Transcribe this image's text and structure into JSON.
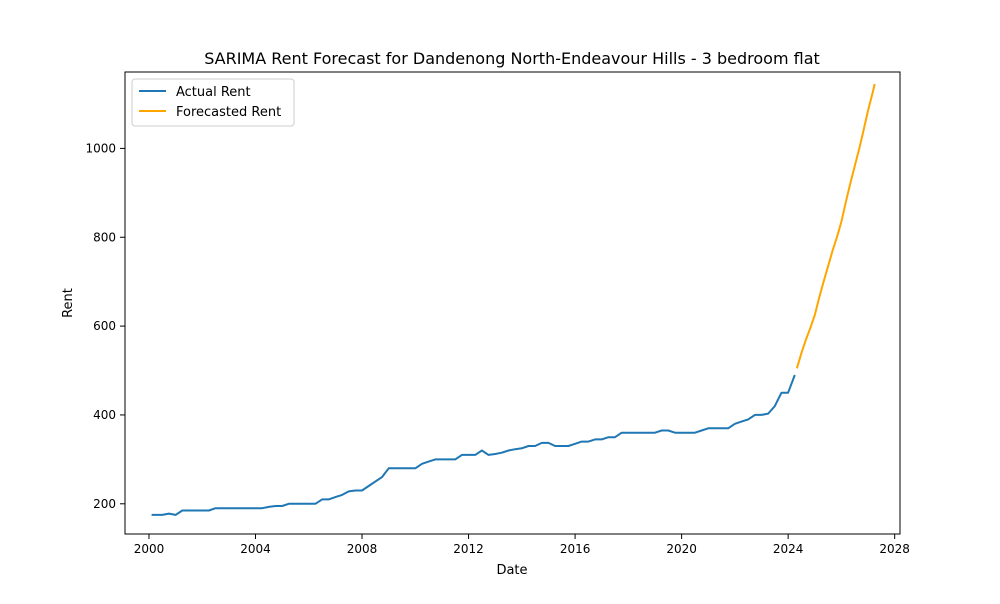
{
  "chart_data": {
    "type": "line",
    "title": "SARIMA Rent Forecast for Dandenong North-Endeavour Hills - 3 bedroom flat",
    "xlabel": "Date",
    "ylabel": "Rent",
    "xlim": [
      1999.1,
      2028.2
    ],
    "ylim": [
      132,
      1172
    ],
    "xticks": [
      2000,
      2004,
      2008,
      2012,
      2016,
      2020,
      2024,
      2028
    ],
    "yticks": [
      200,
      400,
      600,
      800,
      1000
    ],
    "grid": false,
    "legend": "upper left",
    "series": [
      {
        "name": "Actual Rent",
        "color": "#1f77b4",
        "points": [
          [
            2000.1,
            175
          ],
          [
            2000.5,
            175
          ],
          [
            2000.75,
            178
          ],
          [
            2001.0,
            175
          ],
          [
            2001.25,
            185
          ],
          [
            2002.25,
            185
          ],
          [
            2002.5,
            190
          ],
          [
            2004.25,
            190
          ],
          [
            2004.5,
            193
          ],
          [
            2004.75,
            195
          ],
          [
            2005.0,
            195
          ],
          [
            2005.25,
            200
          ],
          [
            2006.25,
            200
          ],
          [
            2006.5,
            210
          ],
          [
            2006.75,
            210
          ],
          [
            2007.0,
            215
          ],
          [
            2007.25,
            220
          ],
          [
            2007.5,
            228
          ],
          [
            2007.75,
            230
          ],
          [
            2008.0,
            230
          ],
          [
            2008.25,
            240
          ],
          [
            2008.5,
            250
          ],
          [
            2008.75,
            260
          ],
          [
            2009.0,
            280
          ],
          [
            2010.0,
            280
          ],
          [
            2010.25,
            290
          ],
          [
            2010.5,
            295
          ],
          [
            2010.75,
            300
          ],
          [
            2011.5,
            300
          ],
          [
            2011.75,
            310
          ],
          [
            2012.25,
            310
          ],
          [
            2012.5,
            320
          ],
          [
            2012.75,
            310
          ],
          [
            2013.0,
            312
          ],
          [
            2013.25,
            315
          ],
          [
            2013.5,
            320
          ],
          [
            2013.75,
            323
          ],
          [
            2014.0,
            325
          ],
          [
            2014.25,
            330
          ],
          [
            2014.5,
            330
          ],
          [
            2014.75,
            337
          ],
          [
            2015.0,
            337
          ],
          [
            2015.25,
            330
          ],
          [
            2015.75,
            330
          ],
          [
            2016.0,
            335
          ],
          [
            2016.25,
            340
          ],
          [
            2016.5,
            340
          ],
          [
            2016.75,
            345
          ],
          [
            2017.0,
            345
          ],
          [
            2017.25,
            350
          ],
          [
            2017.5,
            350
          ],
          [
            2017.75,
            360
          ],
          [
            2019.0,
            360
          ],
          [
            2019.25,
            365
          ],
          [
            2019.5,
            365
          ],
          [
            2019.75,
            360
          ],
          [
            2020.5,
            360
          ],
          [
            2020.75,
            365
          ],
          [
            2021.0,
            370
          ],
          [
            2021.75,
            370
          ],
          [
            2022.0,
            380
          ],
          [
            2022.25,
            385
          ],
          [
            2022.5,
            390
          ],
          [
            2022.75,
            400
          ],
          [
            2023.0,
            400
          ],
          [
            2023.25,
            403
          ],
          [
            2023.5,
            420
          ],
          [
            2023.75,
            450
          ],
          [
            2024.0,
            450
          ],
          [
            2024.25,
            490
          ]
        ]
      },
      {
        "name": "Forecasted Rent",
        "color": "#ffa500",
        "points": [
          [
            2024.33,
            505
          ],
          [
            2024.5,
            540
          ],
          [
            2024.67,
            570
          ],
          [
            2024.83,
            595
          ],
          [
            2025.0,
            625
          ],
          [
            2025.17,
            665
          ],
          [
            2025.33,
            700
          ],
          [
            2025.5,
            735
          ],
          [
            2025.67,
            770
          ],
          [
            2025.83,
            800
          ],
          [
            2026.0,
            835
          ],
          [
            2026.17,
            880
          ],
          [
            2026.33,
            920
          ],
          [
            2026.5,
            960
          ],
          [
            2026.67,
            1000
          ],
          [
            2026.83,
            1040
          ],
          [
            2027.0,
            1085
          ],
          [
            2027.17,
            1125
          ],
          [
            2027.25,
            1145
          ]
        ]
      }
    ]
  }
}
